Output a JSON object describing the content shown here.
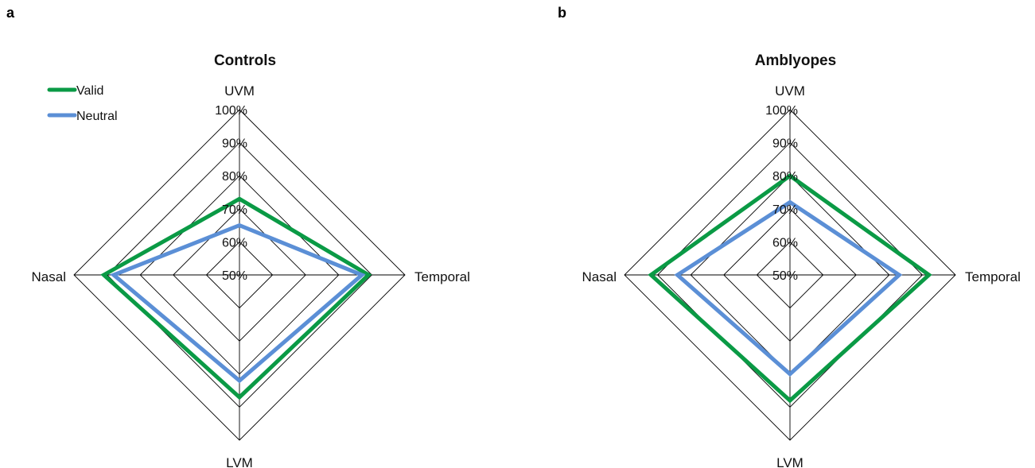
{
  "chart_data": [
    {
      "panel_label": "a",
      "type": "radar",
      "title": "Controls",
      "axes": [
        "UVM",
        "Temporal",
        "LVM",
        "Nasal"
      ],
      "rlim": [
        50,
        100
      ],
      "tick_labels": [
        "50%",
        "60%",
        "70%",
        "80%",
        "90%",
        "100%"
      ],
      "legend": {
        "placement": "top-left",
        "entries": [
          "Valid",
          "Neutral"
        ]
      },
      "series": [
        {
          "name": "Valid",
          "color": "#0a9a45",
          "values": [
            73,
            89,
            87,
            91
          ]
        },
        {
          "name": "Neutral",
          "color": "#5b8fd6",
          "values": [
            65,
            87,
            82,
            88
          ]
        }
      ]
    },
    {
      "panel_label": "b",
      "type": "radar",
      "title": "Amblyopes",
      "axes": [
        "UVM",
        "Temporal",
        "LVM",
        "Nasal"
      ],
      "rlim": [
        50,
        100
      ],
      "tick_labels": [
        "50%",
        "60%",
        "70%",
        "80%",
        "90%",
        "100%"
      ],
      "series": [
        {
          "name": "Valid",
          "color": "#0a9a45",
          "values": [
            80,
            92,
            88,
            92
          ]
        },
        {
          "name": "Neutral",
          "color": "#5b8fd6",
          "values": [
            72,
            83,
            80,
            84
          ]
        }
      ]
    }
  ]
}
